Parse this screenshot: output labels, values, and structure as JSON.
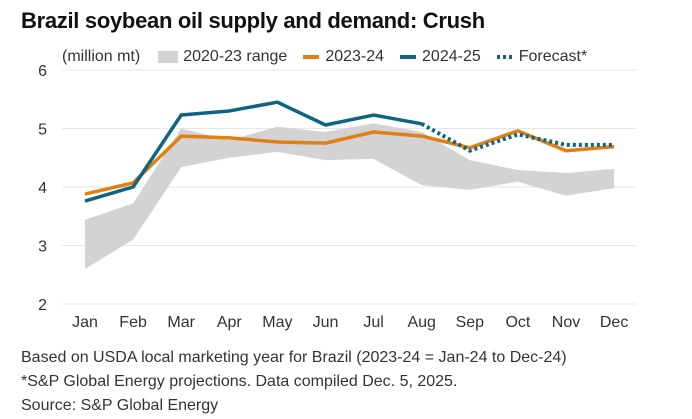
{
  "colors": {
    "range": "#d3d3d5",
    "series_2023_24": "#e07f14",
    "series_2024_25": "#0d6580",
    "grid": "#e6e6e6"
  },
  "chart_data": {
    "type": "line",
    "title": "Brazil soybean oil supply and demand: Crush",
    "ylabel": "(million mt)",
    "xlabel": "",
    "ylim": [
      2,
      6
    ],
    "yticks": [
      2,
      3,
      4,
      5,
      6
    ],
    "grid": true,
    "legend_position": "top",
    "categories": [
      "Jan",
      "Feb",
      "Mar",
      "Apr",
      "May",
      "Jun",
      "Jul",
      "Aug",
      "Sep",
      "Oct",
      "Nov",
      "Dec"
    ],
    "range": {
      "name": "2020-23 range",
      "low": [
        2.6,
        3.1,
        4.34,
        4.5,
        4.6,
        4.46,
        4.48,
        4.03,
        3.95,
        4.09,
        3.85,
        3.98
      ],
      "high": [
        3.44,
        3.72,
        5.0,
        4.8,
        5.03,
        4.94,
        5.09,
        4.94,
        4.46,
        4.29,
        4.24,
        4.31
      ]
    },
    "series": [
      {
        "name": "2023-24",
        "style": "solid",
        "values": [
          3.88,
          4.07,
          4.87,
          4.84,
          4.77,
          4.75,
          4.94,
          4.87,
          4.67,
          4.96,
          4.62,
          4.69
        ]
      },
      {
        "name": "2024-25",
        "style": "solid",
        "values": [
          3.76,
          4.0,
          5.23,
          5.3,
          5.45,
          5.06,
          5.23,
          5.08,
          null,
          null,
          null,
          null
        ]
      },
      {
        "name": "Forecast*",
        "style": "dotted",
        "values": [
          null,
          null,
          null,
          null,
          null,
          null,
          null,
          5.08,
          4.62,
          4.9,
          4.72,
          4.72
        ]
      }
    ]
  },
  "legend": {
    "unit": "(million mt)",
    "range_label": "2020-23 range",
    "s1_label": "2023-24",
    "s2_label": "2024-25",
    "forecast_label": "Forecast*"
  },
  "footnotes": {
    "line1": "Based on USDA local marketing year for Brazil (2023-24 = Jan-24 to Dec-24)",
    "line2": "*S&P Global Energy projections. Data compiled Dec. 5, 2025.",
    "line3": "Source: S&P Global Energy"
  }
}
